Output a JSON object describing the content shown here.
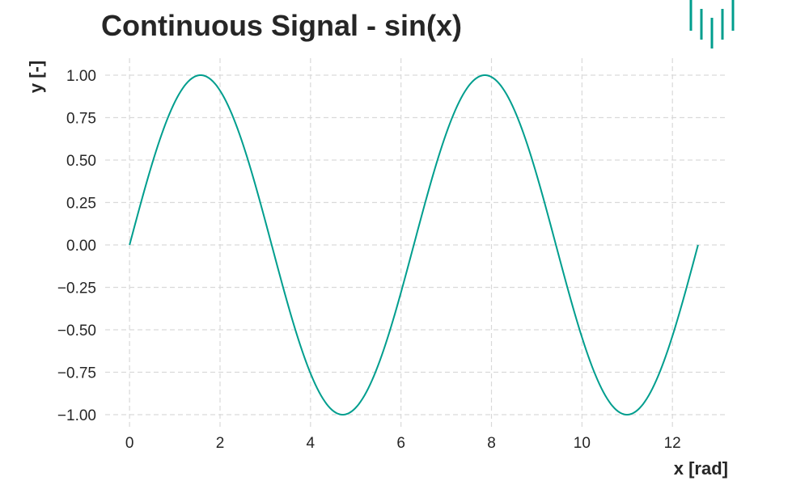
{
  "chart_data": {
    "type": "line",
    "title": "Continuous Signal - sin(x)",
    "xlabel": "x [rad]",
    "ylabel": "y [-]",
    "xlim": [
      -0.6283,
      13.1947
    ],
    "ylim": [
      -1.1,
      1.1
    ],
    "x_ticks": [
      0,
      2,
      4,
      6,
      8,
      10,
      12
    ],
    "x_tick_labels": [
      "0",
      "2",
      "4",
      "6",
      "8",
      "10",
      "12"
    ],
    "y_ticks": [
      1.0,
      0.75,
      0.5,
      0.25,
      0.0,
      -0.25,
      -0.5,
      -0.75,
      -1.0
    ],
    "y_tick_labels": [
      "1.00",
      "0.75",
      "0.50",
      "0.25",
      "0.00",
      "−0.25",
      "−0.50",
      "−0.75",
      "−1.00"
    ],
    "grid": true,
    "series": [
      {
        "color": "#009e8e",
        "x": [
          0.0,
          0.5,
          1.0,
          1.5708,
          2.0,
          2.5,
          3.0,
          3.1416,
          3.5,
          4.0,
          4.7124,
          5.0,
          5.5,
          6.0,
          6.2832,
          6.5,
          7.0,
          7.854,
          8.5,
          9.0,
          9.4248,
          10.0,
          10.5,
          10.9956,
          11.5,
          12.0,
          12.5664
        ],
        "y": [
          0.0,
          0.479,
          0.841,
          1.0,
          0.909,
          0.598,
          0.141,
          0.0,
          -0.351,
          -0.757,
          -1.0,
          -0.959,
          -0.706,
          -0.279,
          0.0,
          0.215,
          0.657,
          1.0,
          0.798,
          0.412,
          0.0,
          -0.544,
          -0.88,
          -1.0,
          -0.875,
          -0.537,
          0.0
        ]
      }
    ]
  },
  "logo": {
    "icon": "bar-pulse-logo-icon",
    "color": "#009e8e"
  }
}
